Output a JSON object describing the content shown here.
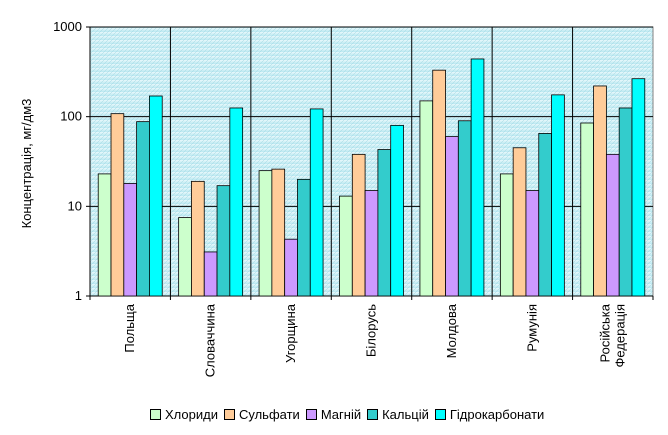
{
  "chart_data": {
    "type": "bar",
    "ylabel": "Концентрація, мг/дм3",
    "yscale": "log",
    "ylim": [
      1,
      1000
    ],
    "yticks": [
      "1",
      "10",
      "100",
      "1000"
    ],
    "categories": [
      [
        "Польща"
      ],
      [
        "Словаччина"
      ],
      [
        "Угорщина"
      ],
      [
        "Білорусь"
      ],
      [
        "Молдова"
      ],
      [
        "Румунія"
      ],
      [
        "Російська",
        "Федерація"
      ]
    ],
    "series": [
      {
        "name": "Хлориди",
        "color": "#ccffcc",
        "values": [
          23,
          7.5,
          25,
          13,
          150,
          23,
          85
        ]
      },
      {
        "name": "Сульфати",
        "color": "#ffcc99",
        "values": [
          108,
          19,
          26,
          38,
          330,
          45,
          220
        ]
      },
      {
        "name": "Магній",
        "color": "#cc99ff",
        "values": [
          18,
          3.1,
          4.3,
          15,
          60,
          15,
          38
        ]
      },
      {
        "name": "Кальцій",
        "color": "#33cccc",
        "values": [
          88,
          17,
          20,
          43,
          90,
          65,
          125
        ]
      },
      {
        "name": "Гідрокарбонати",
        "color": "#00ffff",
        "values": [
          170,
          125,
          122,
          80,
          440,
          175,
          265
        ]
      }
    ],
    "grid": true,
    "legend_position": "bottom"
  }
}
